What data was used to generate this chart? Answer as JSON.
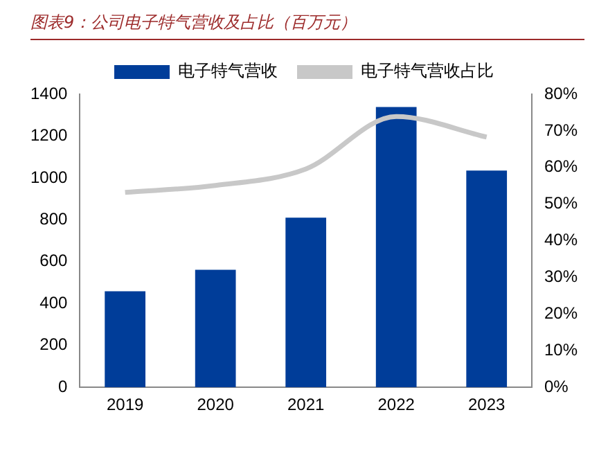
{
  "chart_data": {
    "type": "bar",
    "title": "图表9：公司电子特气营收及占比（百万元）",
    "categories": [
      "2019",
      "2020",
      "2021",
      "2022",
      "2023"
    ],
    "series": [
      {
        "name": "电子特气营收",
        "color": "#003d99",
        "values": [
          459,
          561,
          810,
          1339,
          1035
        ]
      },
      {
        "name": "电子特气营收占比",
        "type": "line",
        "axis": "y2",
        "color": "#c8c8c8",
        "values": [
          53.2,
          55.1,
          59.6,
          73.9,
          68.3
        ]
      }
    ],
    "ylim": [
      0,
      1400
    ],
    "yticks": [
      0,
      200,
      400,
      600,
      800,
      1000,
      1200,
      1400
    ],
    "y2lim": [
      0,
      80
    ],
    "y2ticks": [
      {
        "value": 0,
        "label": "0%"
      },
      {
        "value": 10,
        "label": "10%"
      },
      {
        "value": 20,
        "label": "20%"
      },
      {
        "value": 30,
        "label": "30%"
      },
      {
        "value": 40,
        "label": "40%"
      },
      {
        "value": 50,
        "label": "50%"
      },
      {
        "value": 60,
        "label": "60%"
      },
      {
        "value": 70,
        "label": "70%"
      },
      {
        "value": 80,
        "label": "80%"
      }
    ],
    "grid": false,
    "legend": "top",
    "marker": "none",
    "line_style": "solid"
  }
}
